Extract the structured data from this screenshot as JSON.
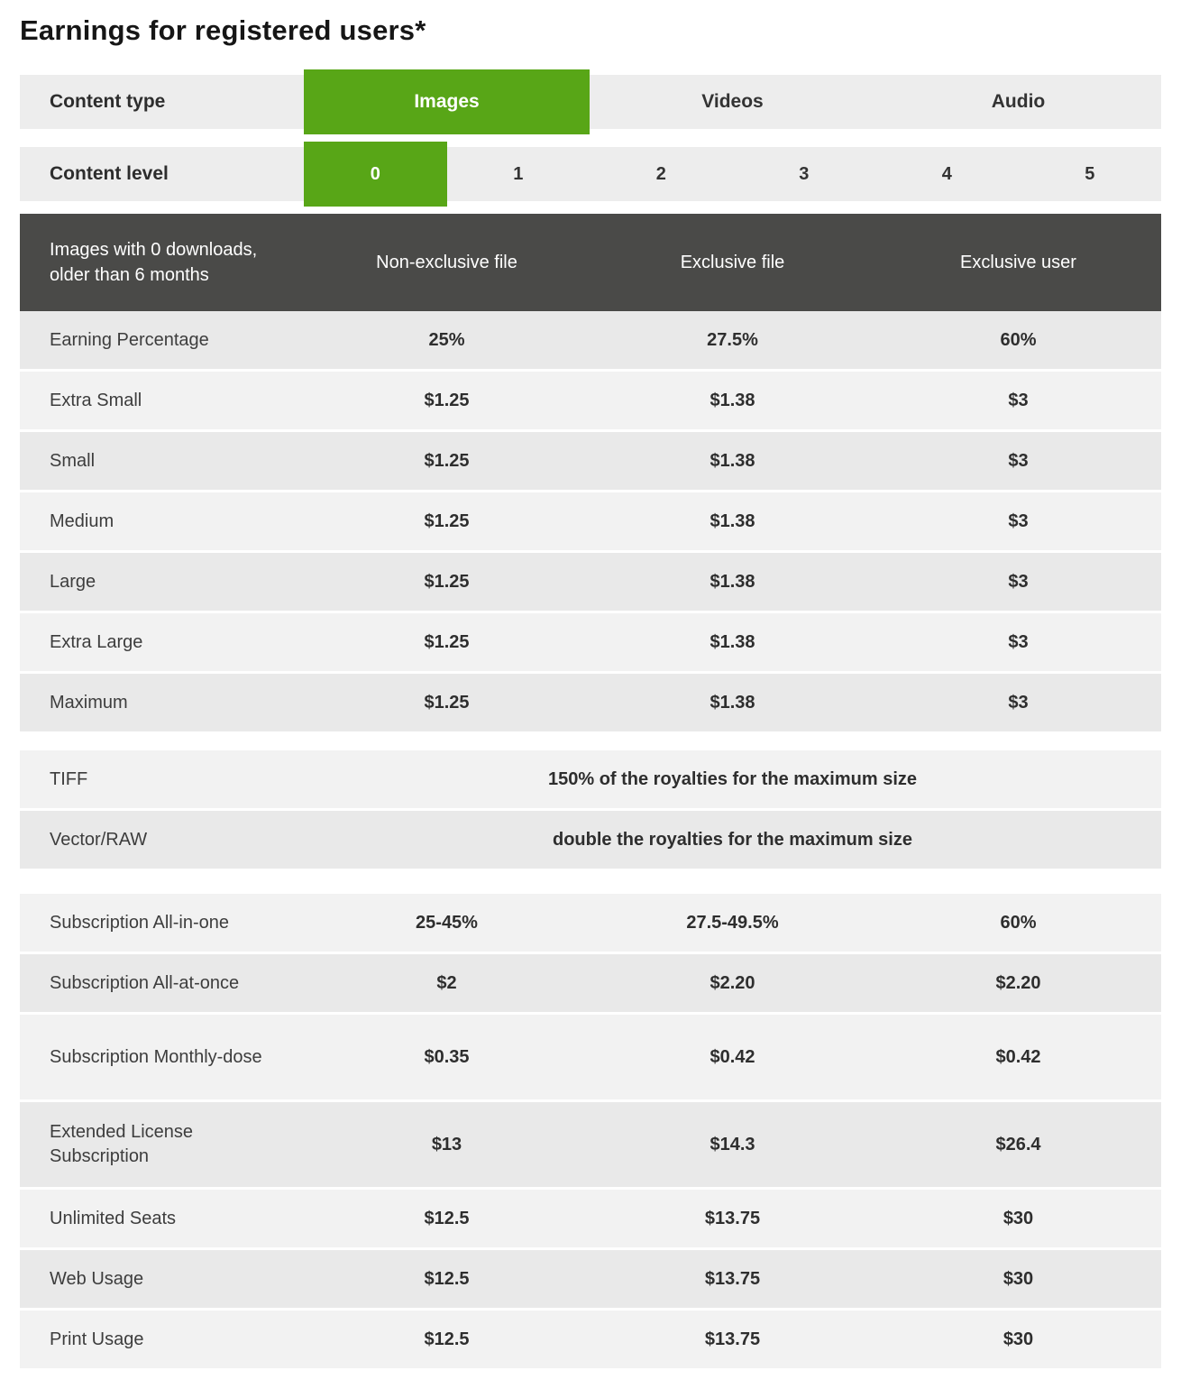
{
  "page": {
    "title": "Earnings for registered users*"
  },
  "colors": {
    "accent_green": "#58a617",
    "green_value_text": "#61aa2e",
    "header_dark": "#4a4a48",
    "row_light": "#f2f2f2",
    "row_dark": "#e9e9e9"
  },
  "content_type": {
    "label": "Content type",
    "options": [
      {
        "label": "Images",
        "selected": true
      },
      {
        "label": "Videos",
        "selected": false
      },
      {
        "label": "Audio",
        "selected": false
      }
    ]
  },
  "content_level": {
    "label": "Content level",
    "options": [
      {
        "label": "0",
        "selected": true
      },
      {
        "label": "1",
        "selected": false
      },
      {
        "label": "2",
        "selected": false
      },
      {
        "label": "3",
        "selected": false
      },
      {
        "label": "4",
        "selected": false
      },
      {
        "label": "5",
        "selected": false
      }
    ]
  },
  "pricing_table": {
    "header": {
      "row_label": "Images with 0 downloads, older than 6 months",
      "columns": [
        "Non-exclusive file",
        "Exclusive file",
        "Exclusive user"
      ]
    },
    "size_rows": [
      {
        "label": "Earning Percentage",
        "values": [
          "25%",
          "27.5%",
          "60%"
        ]
      },
      {
        "label": "Extra Small",
        "values": [
          "$1.25",
          "$1.38",
          "$3"
        ]
      },
      {
        "label": "Small",
        "values": [
          "$1.25",
          "$1.38",
          "$3"
        ]
      },
      {
        "label": "Medium",
        "values": [
          "$1.25",
          "$1.38",
          "$3"
        ]
      },
      {
        "label": "Large",
        "values": [
          "$1.25",
          "$1.38",
          "$3"
        ]
      },
      {
        "label": "Extra Large",
        "values": [
          "$1.25",
          "$1.38",
          "$3"
        ]
      },
      {
        "label": "Maximum",
        "values": [
          "$1.25",
          "$1.38",
          "$3"
        ]
      }
    ],
    "format_rows": [
      {
        "label": "TIFF",
        "value": "150% of the royalties for the maximum size"
      },
      {
        "label": "Vector/RAW",
        "value": "double the royalties for the maximum size"
      }
    ],
    "license_rows": [
      {
        "label": "Subscription All-in-one",
        "values": [
          "25-45%",
          "27.5-49.5%",
          "60%"
        ]
      },
      {
        "label": "Subscription All-at-once",
        "values": [
          "$2",
          "$2.20",
          "$2.20"
        ]
      },
      {
        "label": "Subscription Monthly-dose",
        "values": [
          "$0.35",
          "$0.42",
          "$0.42"
        ]
      },
      {
        "label": "Extended License Subscription",
        "values": [
          "$13",
          "$14.3",
          "$26.4"
        ]
      },
      {
        "label": "Unlimited Seats",
        "values": [
          "$12.5",
          "$13.75",
          "$30"
        ]
      },
      {
        "label": "Web Usage",
        "values": [
          "$12.5",
          "$13.75",
          "$30"
        ]
      },
      {
        "label": "Print Usage",
        "values": [
          "$12.5",
          "$13.75",
          "$30"
        ]
      }
    ]
  }
}
